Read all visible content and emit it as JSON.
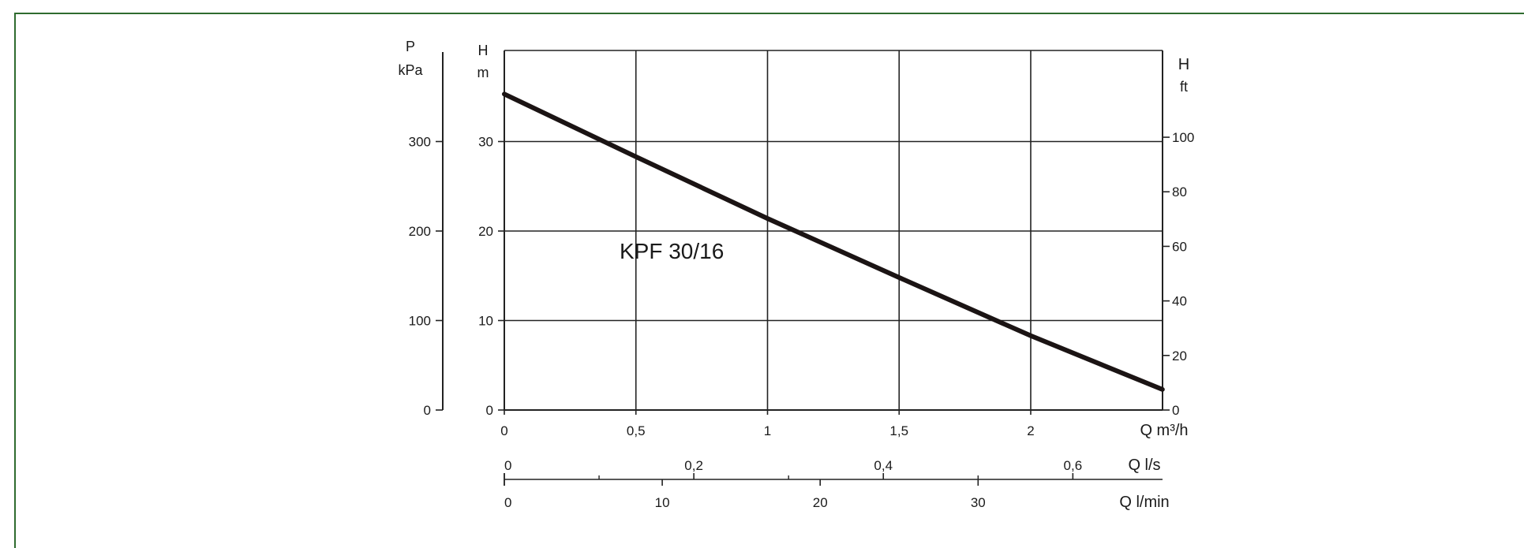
{
  "colors": {
    "frame": "#2f6b2f",
    "curve": "#1b1414",
    "grid": "#222222"
  },
  "chart_data": {
    "type": "line",
    "title": "",
    "series": [
      {
        "name": "KPF 30/16",
        "x": [
          0,
          0.5,
          1,
          1.5,
          2,
          2.5
        ],
        "values": [
          35.3,
          28.3,
          21.4,
          14.8,
          8.3,
          2.3
        ]
      }
    ],
    "annotation": "KPF 30/16",
    "xlim": [
      0,
      2.52
    ],
    "ylim": [
      0,
      40
    ],
    "grid": true,
    "x_axes": {
      "m3h": {
        "label": "Q m³/h",
        "ticks": [
          "0",
          "0,5",
          "1",
          "1,5",
          "2"
        ],
        "values": [
          0,
          0.5,
          1,
          1.5,
          2
        ]
      },
      "ls": {
        "label": "Q l/s",
        "ticks": [
          "0",
          "0,2",
          "0,4",
          "0,6"
        ],
        "values": [
          0,
          0.2,
          0.4,
          0.6
        ],
        "minor": [
          0.1,
          0.3,
          0.5
        ]
      },
      "lmin": {
        "label": "Q l/min",
        "ticks": [
          "0",
          "10",
          "20",
          "30"
        ],
        "values": [
          0,
          10,
          20,
          30
        ]
      }
    },
    "y_axes": {
      "m": {
        "label_line1": "H",
        "label_line2": "m",
        "ticks": [
          "0",
          "10",
          "20",
          "30"
        ],
        "values": [
          0,
          10,
          20,
          30
        ]
      },
      "kPa": {
        "label_line1": "P",
        "label_line2": "kPa",
        "ticks": [
          "0",
          "100",
          "200",
          "300"
        ],
        "values": [
          0,
          100,
          200,
          300
        ]
      },
      "ft": {
        "label_line1": "H",
        "label_line2": "ft",
        "ticks": [
          "0",
          "20",
          "40",
          "60",
          "80",
          "100"
        ],
        "values": [
          0,
          20,
          40,
          60,
          80,
          100
        ]
      }
    }
  }
}
